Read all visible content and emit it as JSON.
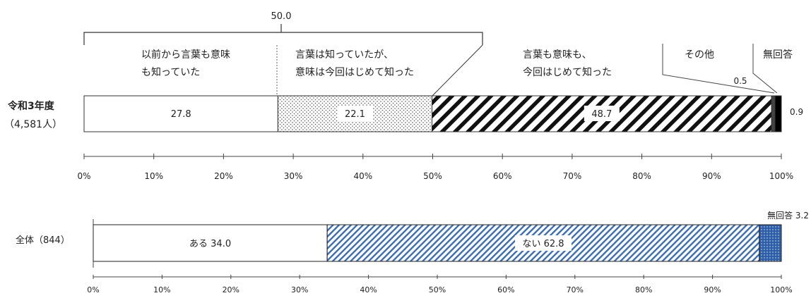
{
  "chart_data": [
    {
      "type": "bar",
      "orientation": "horizontal-stacked-100",
      "rows": [
        {
          "label_line1": "令和3年度",
          "label_line2": "（4,581人）"
        }
      ],
      "bracket_label": "50.0",
      "series": [
        {
          "name": "以前から言葉も意味も知っていた",
          "label_line1": "以前から言葉も意味",
          "label_line2": "も知っていた",
          "values": [
            27.8
          ],
          "value_label": "27.8",
          "fill": "plain",
          "color": "#ffffff"
        },
        {
          "name": "言葉は知っていたが、意味は今回はじめて知った",
          "label_line1": "言葉は知っていたが、",
          "label_line2": "意味は今回はじめて知った",
          "values": [
            22.1
          ],
          "value_label": "22.1",
          "fill": "dots",
          "color": "#888888"
        },
        {
          "name": "言葉も意味も、今回はじめて知った",
          "label_line1": "言葉も意味も、",
          "label_line2": "今回はじめて知った",
          "values": [
            48.7
          ],
          "value_label": "48.7",
          "fill": "diagonal",
          "color": "#111111"
        },
        {
          "name": "その他",
          "label_line1": "その他",
          "values": [
            0.5
          ],
          "value_label": "0.5",
          "fill": "solid",
          "color": "#444444"
        },
        {
          "name": "無回答",
          "label_line1": "無回答",
          "values": [
            0.9
          ],
          "value_label": "0.9",
          "fill": "solid",
          "color": "#000000"
        }
      ],
      "xlim": [
        0,
        100
      ],
      "ticks": [
        "0%",
        "10%",
        "20%",
        "30%",
        "40%",
        "50%",
        "60%",
        "70%",
        "80%",
        "90%",
        "100%"
      ],
      "grid": false
    },
    {
      "type": "bar",
      "orientation": "horizontal-stacked-100",
      "rows": [
        {
          "label_line1": "全体（844）"
        }
      ],
      "series": [
        {
          "name": "ある",
          "values": [
            34.0
          ],
          "value_label": "ある 34.0",
          "fill": "plain",
          "color": "#ffffff"
        },
        {
          "name": "ない",
          "values": [
            62.8
          ],
          "value_label": "ない 62.8",
          "fill": "diagonal",
          "color": "#3a6db5"
        },
        {
          "name": "無回答",
          "values": [
            3.2
          ],
          "value_label": "無回答 3.2",
          "fill": "dots",
          "color": "#3a6db5"
        }
      ],
      "xlim": [
        0,
        100
      ],
      "ticks": [
        "0%",
        "10%",
        "20%",
        "30%",
        "40%",
        "50%",
        "60%",
        "70%",
        "80%",
        "90%",
        "100%"
      ],
      "grid": false
    }
  ]
}
